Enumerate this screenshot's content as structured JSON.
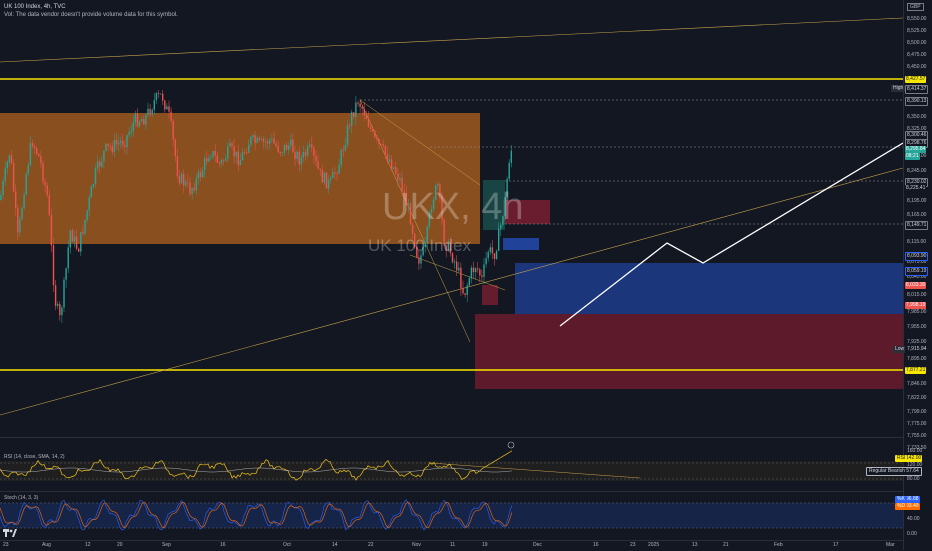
{
  "header": {
    "title": "UK 100 Index, 4h, TVC",
    "subtitle": "Vol: The data vendor doesn't provide volume data for this symbol."
  },
  "watermark": {
    "symbol": "UKX, 4h",
    "name": "UK 100 Index"
  },
  "currency": "GBP",
  "price_axis": {
    "ticks": [
      "8,575.00",
      "8,550.00",
      "8,525.00",
      "8,500.00",
      "8,475.00",
      "8,450.00",
      "8,425.00",
      "8,400.00",
      "8,375.00",
      "8,350.00",
      "8,325.00",
      "8,275.00",
      "8,245.00",
      "8,195.00",
      "8,165.00",
      "8,115.00",
      "8,075.00",
      "8,045.00",
      "8,015.00",
      "7,985.00",
      "7,955.00",
      "7,925.00",
      "7,895.00",
      "7,870.00",
      "7,846.00",
      "7,822.00",
      "7,799.00",
      "7,775.00",
      "7,755.00",
      "7,733.50"
    ],
    "labels": {
      "high_tag": "High",
      "high": "8,414.37",
      "l8427": "8,427.57",
      "l8390": "8,390.13",
      "l8300": "8,300.46",
      "l8298": "8,298.76",
      "l8295": "8,295.84",
      "countdown": "08:21",
      "l8230": "8,230.02",
      "l8225": "8,225.41",
      "l8149": "8,149.71",
      "l8093": "8,093.90",
      "l8059": "8,059.19",
      "l8033": "8,033.30",
      "l7998": "7,998.19",
      "low_tag": "Low",
      "low": "7,915.94",
      "l7877": "7,877.21"
    }
  },
  "rsi": {
    "label": "RSI (14, close, SMA, 14, 2)",
    "axis": [
      "160.00",
      "120.00",
      "80.00"
    ],
    "tag": "RSI",
    "value": "142.00",
    "divergence": "Regular Bearish",
    "divergence_value": "57.64"
  },
  "stoch": {
    "label": "Stoch (14, 3, 3)",
    "axis": [
      "40.00",
      "0.00"
    ],
    "k_tag": "%K",
    "k_value": "96.88",
    "d_tag": "%D",
    "d_value": "93.49"
  },
  "time_axis": [
    "23",
    "Aug",
    "12",
    "20",
    "Sep",
    "16",
    "Oct",
    "14",
    "22",
    "Nov",
    "11",
    "19",
    "Dec",
    "16",
    "23",
    "2025",
    "13",
    "21",
    "Feb",
    "17",
    "Mar"
  ],
  "colors": {
    "bg": "#131722",
    "up": "#26a69a",
    "down": "#ef5350",
    "yellow": "#f7e600",
    "orange_zone": "#c46a22",
    "blue_zone": "#1f3b8a",
    "red_zone": "#7a1e30"
  }
}
